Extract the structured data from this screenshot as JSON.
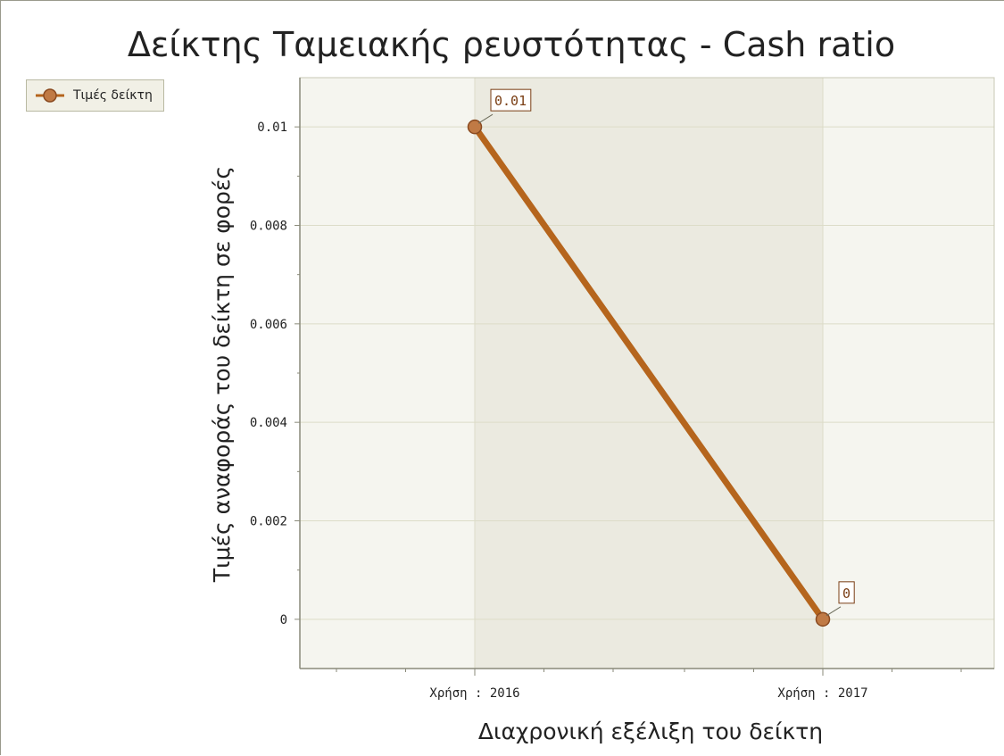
{
  "chart_data": {
    "type": "line",
    "title": "Δείκτης Ταμειακής ρευστότητας - Cash ratio",
    "xlabel": "Διαχρονική εξέλιξη του δείκτη",
    "ylabel": "Τιμές αναφοράς του δείκτη σε φορές",
    "categories": [
      "Χρήση : 2016",
      "Χρήση : 2017"
    ],
    "series": [
      {
        "name": "Τιμές δείκτη",
        "values": [
          0.01,
          0
        ],
        "data_labels": [
          "0.01",
          "0"
        ],
        "color": "#b5651d"
      }
    ],
    "ylim": [
      -0.001,
      0.011
    ],
    "y_ticks": [
      0,
      0.002,
      0.004,
      0.006,
      0.008,
      0.01
    ],
    "y_tick_labels": [
      "0",
      "0.002",
      "0.004",
      "0.006",
      "0.008",
      "0.01"
    ],
    "grid": true,
    "legend_position": "top-left",
    "colors": {
      "plot_background": "#f5f5ef",
      "shaded_band": "#ebeae0",
      "grid": "#dcdcc8",
      "axis": "#8a8a7a",
      "series_line": "#b5651d",
      "marker_fill": "#c07a45",
      "label_border": "#7a3e14"
    }
  }
}
